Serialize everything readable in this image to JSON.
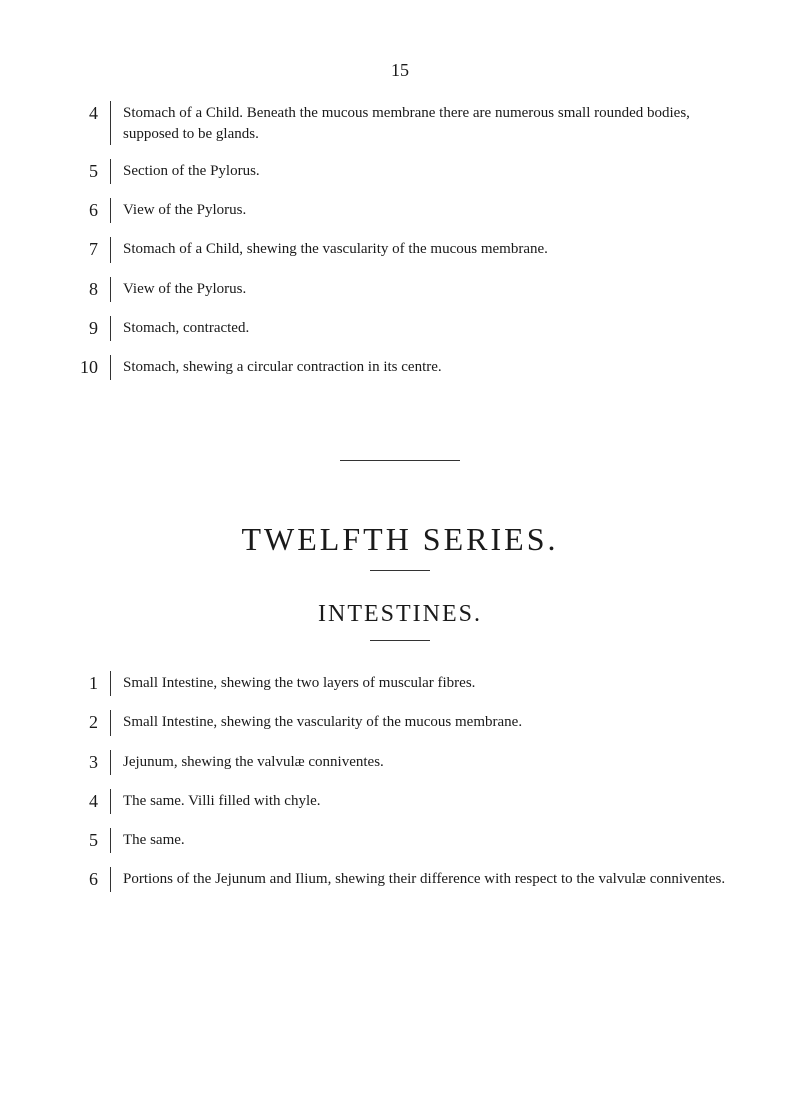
{
  "page_number": "15",
  "top_entries": [
    {
      "num": "4",
      "text": "Stomach of a Child. Beneath the mucous membrane there are numerous small rounded bodies, supposed to be glands."
    },
    {
      "num": "5",
      "text": "Section of the Pylorus."
    },
    {
      "num": "6",
      "text": "View of the Pylorus."
    },
    {
      "num": "7",
      "text": "Stomach of a Child, shewing the vascularity of the mucous membrane."
    },
    {
      "num": "8",
      "text": "View of the Pylorus."
    },
    {
      "num": "9",
      "text": "Stomach, contracted."
    },
    {
      "num": "10",
      "text": "Stomach, shewing a circular contraction in its centre."
    }
  ],
  "series_title": "TWELFTH SERIES.",
  "section_title": "INTESTINES.",
  "bottom_entries": [
    {
      "num": "1",
      "text": "Small Intestine, shewing the two layers of muscular fibres."
    },
    {
      "num": "2",
      "text": "Small Intestine, shewing the vascularity of the mucous membrane."
    },
    {
      "num": "3",
      "text": "Jejunum, shewing the valvulæ conniventes."
    },
    {
      "num": "4",
      "text": "The same. Villi filled with chyle."
    },
    {
      "num": "5",
      "text": "The same."
    },
    {
      "num": "6",
      "text": "Portions of the Jejunum and Ilium, shewing their difference with respect to the valvulæ conniventes."
    }
  ],
  "colors": {
    "background": "#ffffff",
    "text": "#1a1a1a",
    "rule": "#333333"
  },
  "typography": {
    "body_font": "Georgia, Times New Roman, serif",
    "page_number_size": 18,
    "entry_num_size": 18,
    "entry_text_size": 15,
    "series_title_size": 32,
    "section_title_size": 24
  }
}
